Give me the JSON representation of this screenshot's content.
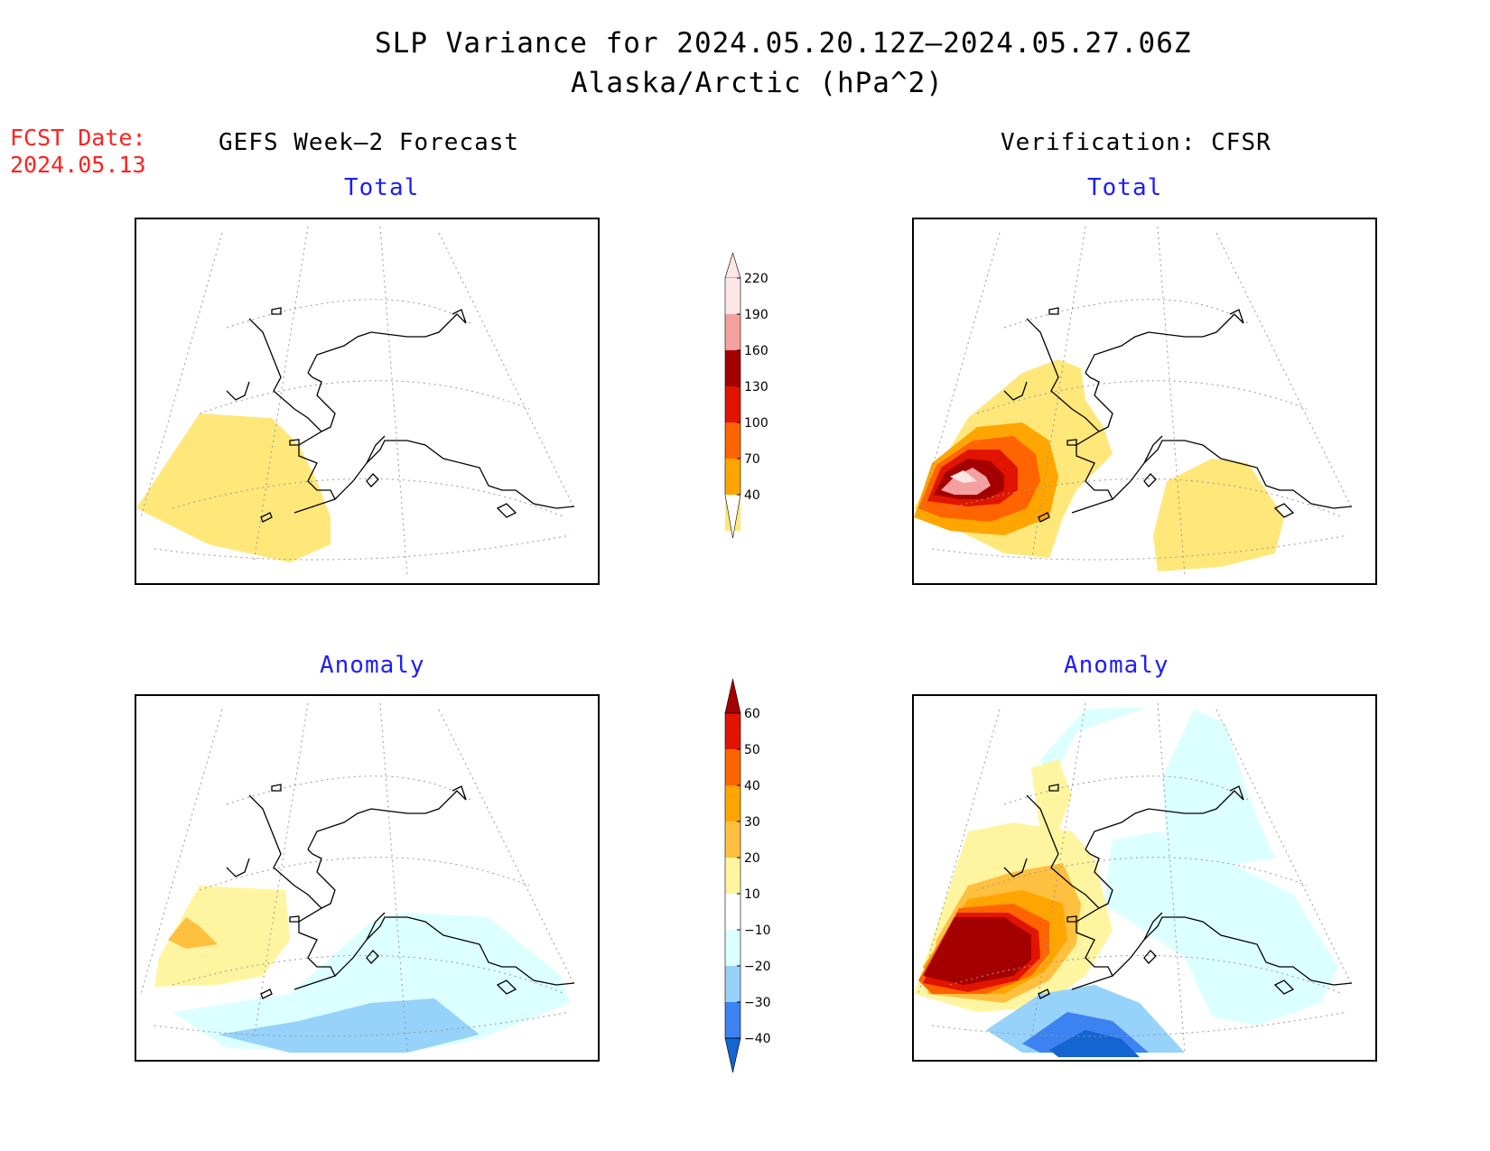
{
  "header": {
    "title_line1": "SLP Variance for 2024.05.20.12Z–2024.05.27.06Z",
    "title_line2": "Alaska/Arctic (hPa^2)",
    "fcst_label": "FCST Date:",
    "fcst_date": "2024.05.13",
    "left_heading": "GEFS Week–2 Forecast",
    "right_heading": "Verification: CFSR"
  },
  "panels": {
    "forecast_total_label": "Total",
    "forecast_anomaly_label": "Anomaly",
    "verification_total_label": "Total",
    "verification_anomaly_label": "Anomaly"
  },
  "colorbars": {
    "total": {
      "levels": [
        "40",
        "70",
        "100",
        "130",
        "160",
        "190",
        "220"
      ],
      "colors": [
        "#ffe77a",
        "#ffa500",
        "#ff6400",
        "#e11400",
        "#a50000",
        "#f5a0a0",
        "#ffe6e6"
      ]
    },
    "anomaly": {
      "levels": [
        "60",
        "50",
        "40",
        "30",
        "20",
        "10",
        "−10",
        "−20",
        "−30",
        "−40"
      ],
      "colors": [
        "#a50000",
        "#e11400",
        "#ff6400",
        "#ffa500",
        "#ffc040",
        "#fff5a0",
        "#ffffff",
        "#dcffff",
        "#96d2fa",
        "#3c82f0",
        "#1464d2"
      ]
    }
  }
}
